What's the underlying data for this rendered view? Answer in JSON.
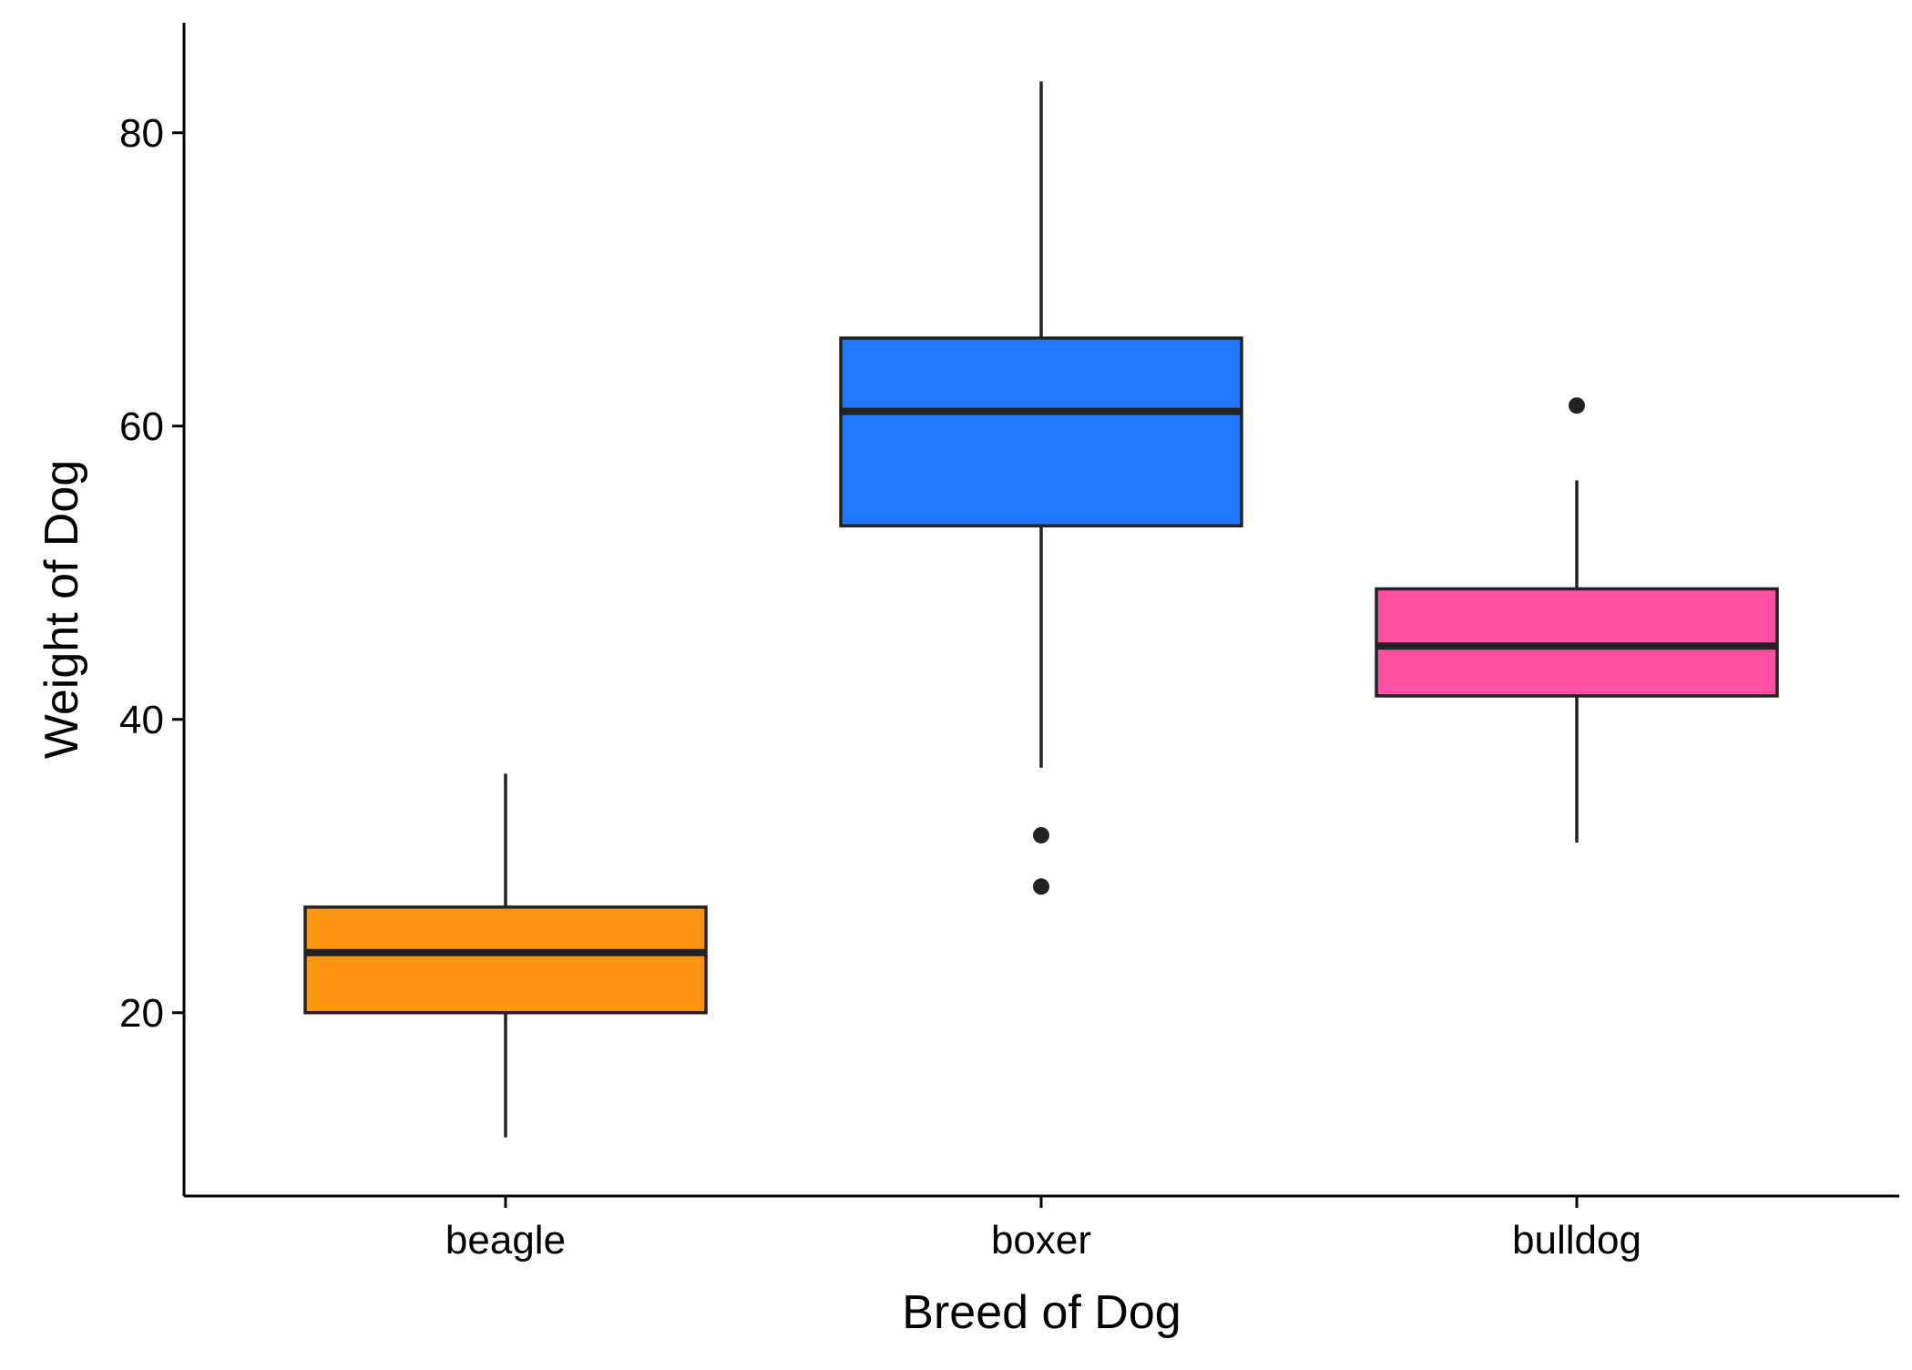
{
  "chart_data": {
    "type": "box",
    "xlabel": "Breed of Dog",
    "ylabel": "Weight of Dog",
    "categories": [
      "beagle",
      "boxer",
      "bulldog"
    ],
    "ylim": [
      7.5,
      87.5
    ],
    "yticks": [
      20,
      40,
      60,
      80
    ],
    "grid": false,
    "legend": "none",
    "series": [
      {
        "category": "beagle",
        "color": "#FF9410",
        "whisker_low": 11.5,
        "q1": 20.0,
        "median": 24.1,
        "q3": 27.2,
        "whisker_high": 36.3,
        "outliers": []
      },
      {
        "category": "boxer",
        "color": "#1F78FF",
        "whisker_low": 36.7,
        "q1": 53.2,
        "median": 61.0,
        "q3": 66.0,
        "whisker_high": 83.5,
        "outliers": [
          32.1,
          28.6
        ]
      },
      {
        "category": "bulldog",
        "color": "#FF4FA3",
        "whisker_low": 31.6,
        "q1": 41.6,
        "median": 45.0,
        "q3": 48.9,
        "whisker_high": 56.3,
        "outliers": [
          61.4
        ]
      }
    ]
  }
}
